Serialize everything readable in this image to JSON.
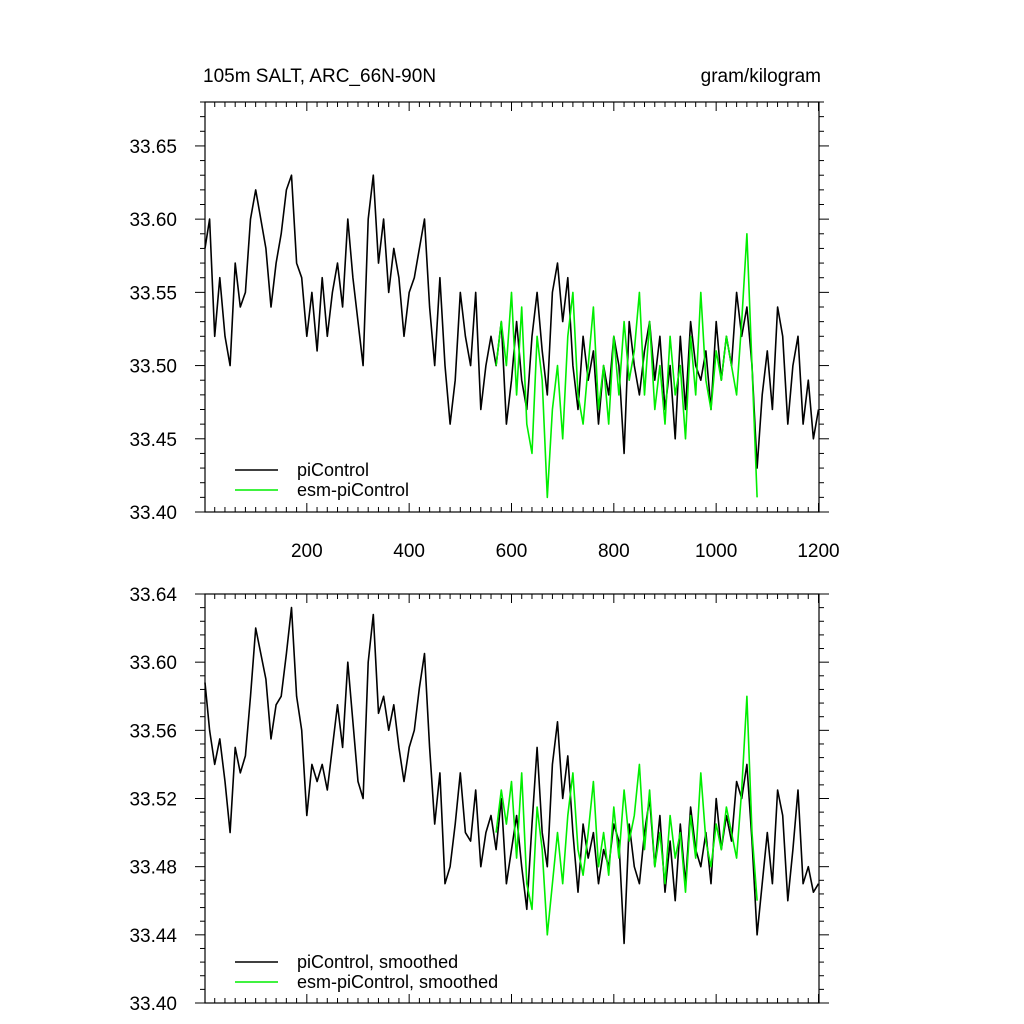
{
  "header": {
    "left_title": "105m SALT, ARC_66N-90N",
    "right_title": "gram/kilogram"
  },
  "colors": {
    "piControl": "#000000",
    "esm_piControl": "#00ee00"
  },
  "chart_data": [
    {
      "type": "line",
      "title": "105m SALT, ARC_66N-90N",
      "units": "gram/kilogram",
      "xlim": [
        1,
        1201
      ],
      "ylim": [
        33.4,
        33.68
      ],
      "x_ticks": [
        200,
        400,
        600,
        800,
        1000,
        1200
      ],
      "x_tick_labels": [
        "200",
        "400",
        "600",
        "800",
        "1000",
        "1200"
      ],
      "y_ticks": [
        33.4,
        33.45,
        33.5,
        33.55,
        33.6,
        33.65
      ],
      "y_tick_labels": [
        "33.40",
        "33.45",
        "33.50",
        "33.55",
        "33.60",
        "33.65"
      ],
      "grid": false,
      "legend_position": "bottom-left",
      "series": [
        {
          "name": "piControl",
          "color": "#000000",
          "x": [
            1,
            10,
            20,
            30,
            40,
            50,
            60,
            70,
            80,
            90,
            100,
            110,
            120,
            130,
            140,
            150,
            160,
            170,
            180,
            190,
            200,
            210,
            220,
            230,
            240,
            250,
            260,
            270,
            280,
            290,
            300,
            310,
            320,
            330,
            340,
            350,
            360,
            370,
            380,
            390,
            400,
            410,
            420,
            430,
            440,
            450,
            460,
            470,
            480,
            490,
            500,
            510,
            520,
            530,
            540,
            550,
            560,
            570,
            580,
            590,
            600,
            610,
            620,
            630,
            640,
            650,
            660,
            670,
            680,
            690,
            700,
            710,
            720,
            730,
            740,
            750,
            760,
            770,
            780,
            790,
            800,
            810,
            820,
            830,
            840,
            850,
            860,
            870,
            880,
            890,
            900,
            910,
            920,
            930,
            940,
            950,
            960,
            970,
            980,
            990,
            1000,
            1010,
            1020,
            1030,
            1040,
            1050,
            1060,
            1070,
            1080,
            1090,
            1100,
            1110,
            1120,
            1130,
            1140,
            1150,
            1160,
            1170,
            1180,
            1190,
            1200
          ],
          "values": [
            33.58,
            33.6,
            33.52,
            33.56,
            33.52,
            33.5,
            33.57,
            33.54,
            33.55,
            33.6,
            33.62,
            33.6,
            33.58,
            33.54,
            33.57,
            33.59,
            33.62,
            33.63,
            33.57,
            33.56,
            33.52,
            33.55,
            33.51,
            33.56,
            33.52,
            33.55,
            33.57,
            33.54,
            33.6,
            33.56,
            33.53,
            33.5,
            33.6,
            33.63,
            33.57,
            33.6,
            33.55,
            33.58,
            33.56,
            33.52,
            33.55,
            33.56,
            33.58,
            33.6,
            33.54,
            33.5,
            33.56,
            33.5,
            33.46,
            33.49,
            33.55,
            33.52,
            33.5,
            33.55,
            33.47,
            33.5,
            33.52,
            33.5,
            33.53,
            33.46,
            33.49,
            33.53,
            33.49,
            33.47,
            33.52,
            33.55,
            33.51,
            33.48,
            33.55,
            33.57,
            33.53,
            33.56,
            33.5,
            33.47,
            33.52,
            33.49,
            33.51,
            33.46,
            33.5,
            33.48,
            33.52,
            33.5,
            33.44,
            33.53,
            33.5,
            33.48,
            33.51,
            33.53,
            33.49,
            33.52,
            33.47,
            33.5,
            33.45,
            33.52,
            33.47,
            33.53,
            33.5,
            33.49,
            33.51,
            33.47,
            33.53,
            33.49,
            33.52,
            33.5,
            33.55,
            33.52,
            33.54,
            33.5,
            33.43,
            33.48,
            33.51,
            33.47,
            33.54,
            33.52,
            33.46,
            33.5,
            33.52,
            33.46,
            33.49,
            33.45,
            33.47
          ]
        },
        {
          "name": "esm-piControl",
          "color": "#00ee00",
          "x": [
            570,
            580,
            590,
            600,
            610,
            620,
            630,
            640,
            650,
            660,
            670,
            680,
            690,
            700,
            710,
            720,
            730,
            740,
            750,
            760,
            770,
            780,
            790,
            800,
            810,
            820,
            830,
            840,
            850,
            860,
            870,
            880,
            890,
            900,
            910,
            920,
            930,
            940,
            950,
            960,
            970,
            980,
            990,
            1000,
            1010,
            1020,
            1030,
            1040,
            1050,
            1060,
            1070,
            1080
          ],
          "values": [
            33.5,
            33.53,
            33.5,
            33.55,
            33.48,
            33.54,
            33.46,
            33.44,
            33.52,
            33.49,
            33.41,
            33.47,
            33.5,
            33.45,
            33.52,
            33.55,
            33.48,
            33.46,
            33.5,
            33.54,
            33.47,
            33.5,
            33.46,
            33.52,
            33.48,
            33.53,
            33.49,
            33.51,
            33.55,
            33.48,
            33.53,
            33.47,
            33.5,
            33.46,
            33.52,
            33.48,
            33.5,
            33.45,
            33.52,
            33.48,
            33.55,
            33.49,
            33.47,
            33.51,
            33.49,
            33.52,
            33.5,
            33.48,
            33.53,
            33.59,
            33.5,
            33.41
          ]
        }
      ],
      "legend": [
        "piControl",
        "esm-piControl"
      ]
    },
    {
      "type": "line",
      "xlim": [
        1,
        1201
      ],
      "ylim": [
        33.4,
        33.64
      ],
      "x_ticks": [
        200,
        400,
        600,
        800,
        1000,
        1200
      ],
      "y_ticks": [
        33.4,
        33.44,
        33.48,
        33.52,
        33.56,
        33.6,
        33.64
      ],
      "y_tick_labels": [
        "33.40",
        "33.44",
        "33.48",
        "33.52",
        "33.56",
        "33.60",
        "33.64"
      ],
      "grid": false,
      "legend_position": "bottom-left",
      "series": [
        {
          "name": "piControl, smoothed",
          "color": "#000000",
          "x": [
            1,
            10,
            20,
            30,
            40,
            50,
            60,
            70,
            80,
            90,
            100,
            110,
            120,
            130,
            140,
            150,
            160,
            170,
            180,
            190,
            200,
            210,
            220,
            230,
            240,
            250,
            260,
            270,
            280,
            290,
            300,
            310,
            320,
            330,
            340,
            350,
            360,
            370,
            380,
            390,
            400,
            410,
            420,
            430,
            440,
            450,
            460,
            470,
            480,
            490,
            500,
            510,
            520,
            530,
            540,
            550,
            560,
            570,
            580,
            590,
            600,
            610,
            620,
            630,
            640,
            650,
            660,
            670,
            680,
            690,
            700,
            710,
            720,
            730,
            740,
            750,
            760,
            770,
            780,
            790,
            800,
            810,
            820,
            830,
            840,
            850,
            860,
            870,
            880,
            890,
            900,
            910,
            920,
            930,
            940,
            950,
            960,
            970,
            980,
            990,
            1000,
            1010,
            1020,
            1030,
            1040,
            1050,
            1060,
            1070,
            1080,
            1090,
            1100,
            1110,
            1120,
            1130,
            1140,
            1150,
            1160,
            1170,
            1180,
            1190,
            1200
          ],
          "values": [
            33.588,
            33.56,
            33.54,
            33.555,
            33.53,
            33.5,
            33.55,
            33.535,
            33.545,
            33.58,
            33.62,
            33.605,
            33.59,
            33.555,
            33.575,
            33.58,
            33.605,
            33.632,
            33.58,
            33.56,
            33.51,
            33.54,
            33.53,
            33.54,
            33.525,
            33.55,
            33.575,
            33.55,
            33.6,
            33.565,
            33.53,
            33.52,
            33.6,
            33.628,
            33.57,
            33.58,
            33.56,
            33.575,
            33.55,
            33.53,
            33.55,
            33.56,
            33.585,
            33.605,
            33.55,
            33.505,
            33.535,
            33.47,
            33.48,
            33.505,
            33.535,
            33.5,
            33.495,
            33.525,
            33.48,
            33.5,
            33.51,
            33.49,
            33.52,
            33.47,
            33.49,
            33.51,
            33.48,
            33.455,
            33.505,
            33.55,
            33.5,
            33.48,
            33.54,
            33.565,
            33.52,
            33.545,
            33.5,
            33.465,
            33.505,
            33.485,
            33.5,
            33.47,
            33.49,
            33.48,
            33.505,
            33.495,
            33.435,
            33.505,
            33.48,
            33.47,
            33.5,
            33.52,
            33.48,
            33.51,
            33.465,
            33.495,
            33.46,
            33.505,
            33.47,
            33.515,
            33.49,
            33.48,
            33.5,
            33.47,
            33.52,
            33.49,
            33.51,
            33.495,
            33.53,
            33.52,
            33.54,
            33.495,
            33.44,
            33.47,
            33.5,
            33.47,
            33.525,
            33.51,
            33.46,
            33.49,
            33.525,
            33.47,
            33.48,
            33.465,
            33.47
          ]
        },
        {
          "name": "esm-piControl, smoothed",
          "color": "#00ee00",
          "x": [
            570,
            580,
            590,
            600,
            610,
            620,
            630,
            640,
            650,
            660,
            670,
            680,
            690,
            700,
            710,
            720,
            730,
            740,
            750,
            760,
            770,
            780,
            790,
            800,
            810,
            820,
            830,
            840,
            850,
            860,
            870,
            880,
            890,
            900,
            910,
            920,
            930,
            940,
            950,
            960,
            970,
            980,
            990,
            1000,
            1010,
            1020,
            1030,
            1040,
            1050,
            1060,
            1070,
            1080
          ],
          "values": [
            33.5,
            33.525,
            33.505,
            33.53,
            33.485,
            33.535,
            33.47,
            33.455,
            33.515,
            33.49,
            33.44,
            33.47,
            33.5,
            33.47,
            33.51,
            33.535,
            33.49,
            33.475,
            33.5,
            33.53,
            33.48,
            33.5,
            33.475,
            33.515,
            33.485,
            33.525,
            33.495,
            33.51,
            33.54,
            33.49,
            33.525,
            33.48,
            33.5,
            33.47,
            33.51,
            33.485,
            33.5,
            33.465,
            33.51,
            33.485,
            33.535,
            33.495,
            33.48,
            33.505,
            33.49,
            33.515,
            33.5,
            33.485,
            33.525,
            33.58,
            33.5,
            33.46
          ]
        }
      ],
      "legend": [
        "piControl, smoothed",
        "esm-piControl, smoothed"
      ]
    }
  ]
}
